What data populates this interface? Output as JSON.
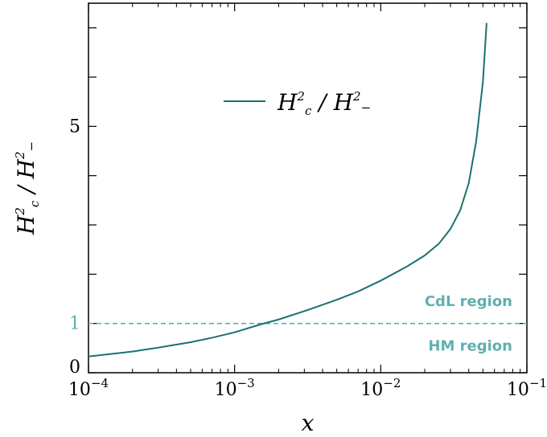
{
  "chart_data": {
    "type": "line",
    "xscale": "log",
    "xlim": [
      0.0001,
      0.1
    ],
    "ylim": [
      0,
      7.5
    ],
    "xlabel": "x",
    "ylabel": "H_c^2 / H_-^2",
    "x_ticks": [
      {
        "value": 0.0001,
        "base": "10",
        "exp": "−4"
      },
      {
        "value": 0.001,
        "base": "10",
        "exp": "−3"
      },
      {
        "value": 0.01,
        "base": "10",
        "exp": "−2"
      },
      {
        "value": 0.1,
        "base": "10",
        "exp": "−1"
      }
    ],
    "y_tick_labels": [
      {
        "value": 0,
        "label": "0"
      },
      {
        "value": 5,
        "label": "5"
      }
    ],
    "y_minor_ticks": [
      0,
      1,
      2,
      3,
      4,
      5,
      6,
      7
    ],
    "reference_line": {
      "y": 1,
      "label": "1",
      "style": "dashed",
      "color": "#5fb0b0"
    },
    "region_labels": [
      {
        "text": "CdL region",
        "y": 1.45
      },
      {
        "text": "HM region",
        "y": 0.55
      }
    ],
    "series": [
      {
        "name": "H_c^2 / H_-^2",
        "color": "#1a7272",
        "points": [
          [
            0.0001,
            0.33
          ],
          [
            0.0002,
            0.43
          ],
          [
            0.0003,
            0.51
          ],
          [
            0.0005,
            0.62
          ],
          [
            0.0007,
            0.71
          ],
          [
            0.001,
            0.82
          ],
          [
            0.0015,
            0.98
          ],
          [
            0.002,
            1.08
          ],
          [
            0.003,
            1.25
          ],
          [
            0.005,
            1.48
          ],
          [
            0.007,
            1.65
          ],
          [
            0.01,
            1.87
          ],
          [
            0.015,
            2.15
          ],
          [
            0.02,
            2.38
          ],
          [
            0.025,
            2.62
          ],
          [
            0.03,
            2.92
          ],
          [
            0.035,
            3.3
          ],
          [
            0.04,
            3.85
          ],
          [
            0.045,
            4.7
          ],
          [
            0.05,
            5.9
          ],
          [
            0.053,
            7.1
          ]
        ]
      }
    ],
    "legend": {
      "position": "top-center",
      "label_base": "H",
      "label_sub": "c",
      "label_sup": "2",
      "label_den_base": "H",
      "label_den_sub": "−",
      "label_den_sup": "2"
    }
  }
}
